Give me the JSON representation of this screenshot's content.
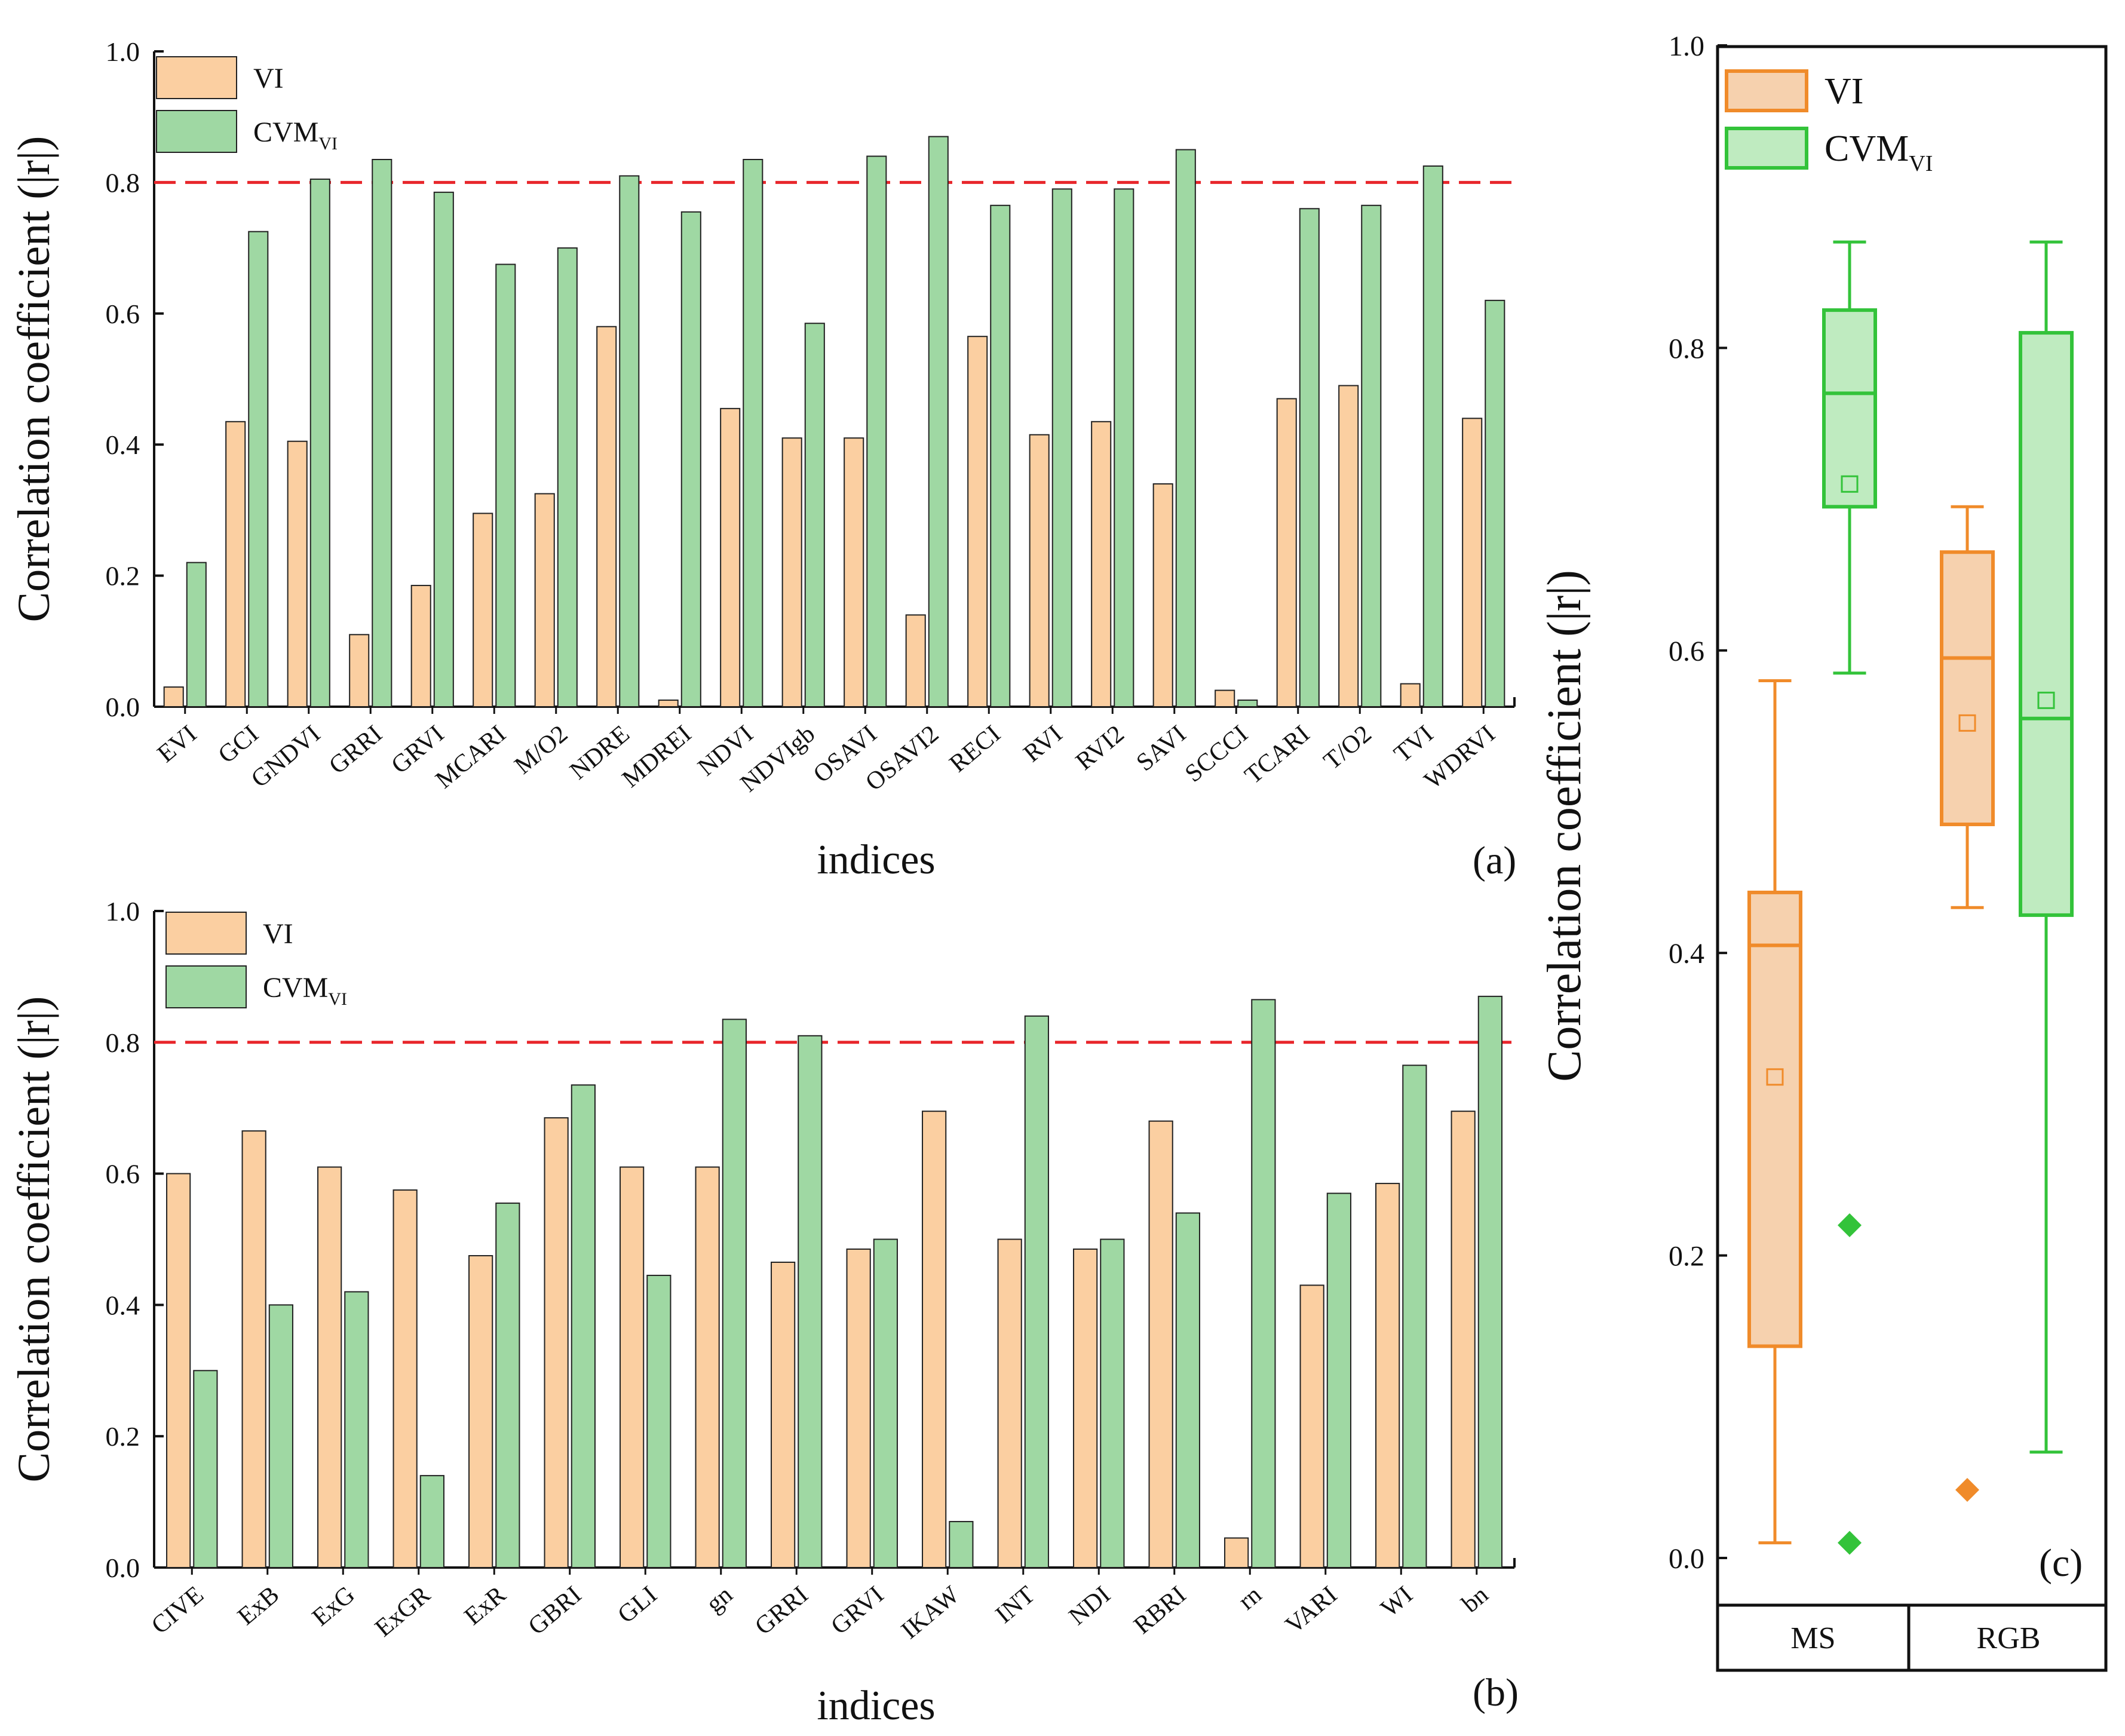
{
  "chart_data": [
    {
      "id": "a",
      "type": "bar",
      "panel_label": "(a)",
      "xlabel": "indices",
      "ylabel": "Correlation coefficient (|r|)",
      "ylim": [
        0,
        1.0
      ],
      "yticks": [
        "0.0",
        "0.2",
        "0.4",
        "0.6",
        "0.8",
        "1.0"
      ],
      "threshold": 0.8,
      "categories": [
        "EVI",
        "GCI",
        "GNDVI",
        "GRRI",
        "GRVI",
        "MCARI",
        "M/O2",
        "NDRE",
        "MDREI",
        "NDVI",
        "NDVIgb",
        "OSAVI",
        "OSAVI2",
        "RECI",
        "RVI",
        "RVI2",
        "SAVI",
        "SCCCI",
        "TCARI",
        "T/O2",
        "TVI",
        "WDRVI"
      ],
      "series": [
        {
          "name": "VI",
          "color": "#FBCFA1",
          "values": [
            0.03,
            0.435,
            0.405,
            0.11,
            0.185,
            0.295,
            0.325,
            0.58,
            0.01,
            0.455,
            0.41,
            0.41,
            0.14,
            0.565,
            0.415,
            0.435,
            0.34,
            0.025,
            0.47,
            0.49,
            0.035,
            0.44
          ]
        },
        {
          "name": "CVM",
          "sub": "VI",
          "color": "#9FD8A3",
          "values": [
            0.22,
            0.725,
            0.805,
            0.835,
            0.785,
            0.675,
            0.7,
            0.81,
            0.755,
            0.835,
            0.585,
            0.84,
            0.87,
            0.765,
            0.79,
            0.79,
            0.85,
            0.01,
            0.76,
            0.765,
            0.825,
            0.62
          ]
        }
      ]
    },
    {
      "id": "b",
      "type": "bar",
      "panel_label": "(b)",
      "xlabel": "indices",
      "ylabel": "Correlation coefficient (|r|)",
      "ylim": [
        0,
        1.0
      ],
      "yticks": [
        "0.0",
        "0.2",
        "0.4",
        "0.6",
        "0.8",
        "1.0"
      ],
      "threshold": 0.8,
      "categories": [
        "CIVE",
        "ExB",
        "ExG",
        "ExGR",
        "ExR",
        "GBRI",
        "GLI",
        "gn",
        "GRRI",
        "GRVI",
        "IKAW",
        "INT",
        "NDI",
        "RBRI",
        "rn",
        "VARI",
        "WI",
        "bn"
      ],
      "series": [
        {
          "name": "VI",
          "color": "#FBCFA1",
          "values": [
            0.6,
            0.665,
            0.61,
            0.575,
            0.475,
            0.685,
            0.61,
            0.61,
            0.465,
            0.485,
            0.695,
            0.5,
            0.485,
            0.68,
            0.045,
            0.43,
            0.585,
            0.695
          ]
        },
        {
          "name": "CVM",
          "sub": "VI",
          "color": "#9FD8A3",
          "values": [
            0.3,
            0.4,
            0.42,
            0.14,
            0.555,
            0.735,
            0.445,
            0.835,
            0.81,
            0.5,
            0.07,
            0.84,
            0.5,
            0.54,
            0.865,
            0.57,
            0.765,
            0.87
          ]
        }
      ]
    },
    {
      "id": "c",
      "type": "box",
      "panel_label": "(c)",
      "ylabel": "Correlation coefficient (|r|)",
      "ylim": [
        0,
        1.0
      ],
      "yticks": [
        "0.0",
        "0.2",
        "0.4",
        "0.6",
        "0.8",
        "1.0"
      ],
      "groups": [
        "MS",
        "RGB"
      ],
      "legend": [
        {
          "name": "VI",
          "color": "#F08B2A",
          "fill": "#F6D1AE"
        },
        {
          "name": "CVM",
          "sub": "VI",
          "color": "#33C33A",
          "fill": "#BFEBC0"
        }
      ],
      "boxes": [
        {
          "group": "MS",
          "series": "VI",
          "whisker_low": 0.01,
          "q1": 0.14,
          "median": 0.405,
          "q3": 0.44,
          "whisker_high": 0.58,
          "mean": 0.318,
          "outliers": []
        },
        {
          "group": "MS",
          "series": "CVM",
          "whisker_low": 0.585,
          "q1": 0.695,
          "median": 0.77,
          "q3": 0.825,
          "whisker_high": 0.87,
          "mean": 0.71,
          "outliers": [
            0.22,
            0.01
          ]
        },
        {
          "group": "RGB",
          "series": "VI",
          "whisker_low": 0.43,
          "q1": 0.485,
          "median": 0.595,
          "q3": 0.665,
          "whisker_high": 0.695,
          "mean": 0.552,
          "outliers": [
            0.045
          ]
        },
        {
          "group": "RGB",
          "series": "CVM",
          "whisker_low": 0.07,
          "q1": 0.425,
          "median": 0.555,
          "q3": 0.81,
          "whisker_high": 0.87,
          "mean": 0.567,
          "outliers": []
        }
      ]
    }
  ]
}
